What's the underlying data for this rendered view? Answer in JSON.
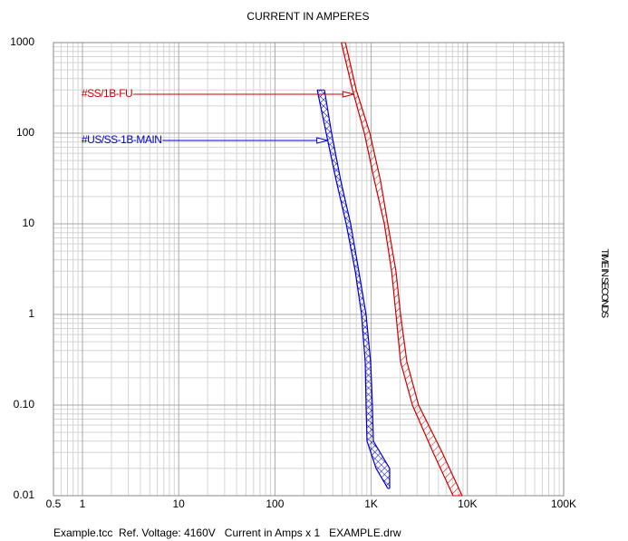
{
  "chart_data": {
    "type": "band",
    "title": "CURRENT IN AMPERES",
    "y_label": "TIME IN SECONDS",
    "footer": "Example.tcc  Ref. Voltage: 4160V   Current in Amps x 1   EXAMPLE.drw",
    "log_x": true,
    "log_y": true,
    "grid": true,
    "xlim": [
      0.5,
      100000
    ],
    "ylim": [
      0.01,
      1000
    ],
    "xticks": [
      0.5,
      1,
      10,
      100,
      {
        "value": 1000,
        "label": "1K"
      },
      {
        "value": 10000,
        "label": "10K"
      },
      {
        "value": 100000,
        "label": "100K"
      }
    ],
    "yticks": [
      1000,
      100,
      10,
      1,
      {
        "value": 0.1,
        "label": "0.10"
      },
      0.01
    ],
    "series": [
      {
        "name": "#SS/1B-FU",
        "color": "#cc0000",
        "hatch": "diagonal",
        "y": [
          1000,
          300,
          100,
          30,
          10,
          3,
          1,
          0.3,
          0.1,
          0.03,
          0.01
        ],
        "x_min": [
          490,
          640,
          850,
          1080,
          1370,
          1630,
          1810,
          2020,
          2680,
          4400,
          7100
        ],
        "x_max": [
          540,
          700,
          970,
          1250,
          1490,
          1810,
          2020,
          2350,
          3110,
          5470,
          8810
        ]
      },
      {
        "name": "#US/SS-1B-MAIN",
        "color": "#0000cc",
        "hatch": "cross",
        "y": [
          300,
          100,
          30,
          10,
          3,
          1,
          0.3,
          0.1,
          0.04,
          0.02,
          0.012
        ],
        "x_min": [
          275,
          341,
          433,
          550,
          683,
          794,
          867,
          885,
          905,
          1125,
          1490
        ],
        "x_max": [
          327,
          388,
          483,
          612,
          744,
          885,
          987,
          1030,
          1054,
          1556,
          1556
        ]
      }
    ]
  }
}
